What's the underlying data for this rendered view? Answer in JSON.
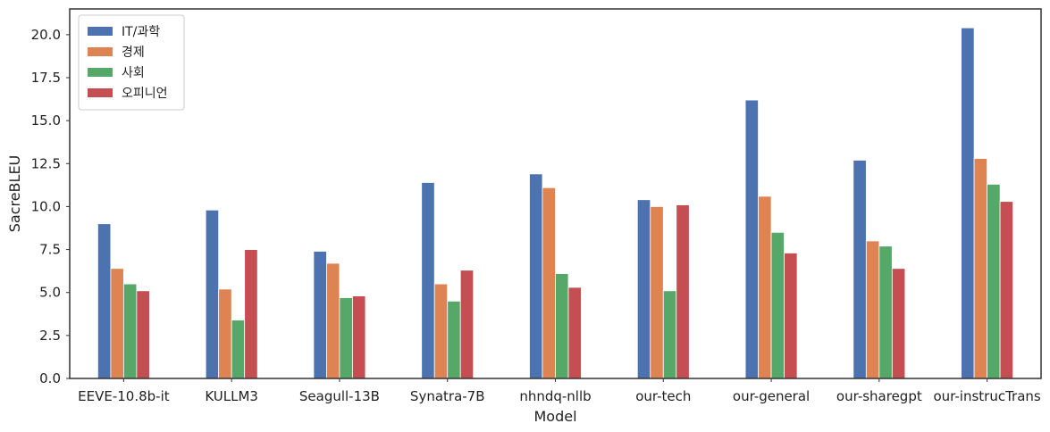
{
  "chart_data": {
    "type": "bar",
    "xlabel": "Model",
    "ylabel": "SacreBLEU",
    "ylim": [
      0,
      21.5
    ],
    "yticks": [
      "0.0",
      "2.5",
      "5.0",
      "7.5",
      "10.0",
      "12.5",
      "15.0",
      "17.5",
      "20.0"
    ],
    "categories": [
      "EEVE-10.8b-it",
      "KULLM3",
      "Seagull-13B",
      "Synatra-7B",
      "nhndq-nllb",
      "our-tech",
      "our-general",
      "our-sharegpt",
      "our-instrucTrans"
    ],
    "series": [
      {
        "name": "IT/과학",
        "color": "#4c72b0",
        "values": [
          9.0,
          9.8,
          7.4,
          11.4,
          11.9,
          10.4,
          16.2,
          12.7,
          20.4
        ]
      },
      {
        "name": "경제",
        "color": "#dd8452",
        "values": [
          6.4,
          5.2,
          6.7,
          5.5,
          11.1,
          10.0,
          10.6,
          8.0,
          12.8
        ]
      },
      {
        "name": "사회",
        "color": "#55a868",
        "values": [
          5.5,
          3.4,
          4.7,
          4.5,
          6.1,
          5.1,
          8.5,
          7.7,
          11.3
        ]
      },
      {
        "name": "오피니언",
        "color": "#c44e52",
        "values": [
          5.1,
          7.5,
          4.8,
          6.3,
          5.3,
          10.1,
          7.3,
          6.4,
          10.3
        ]
      }
    ],
    "legend_position": "top-left",
    "grid": false
  }
}
